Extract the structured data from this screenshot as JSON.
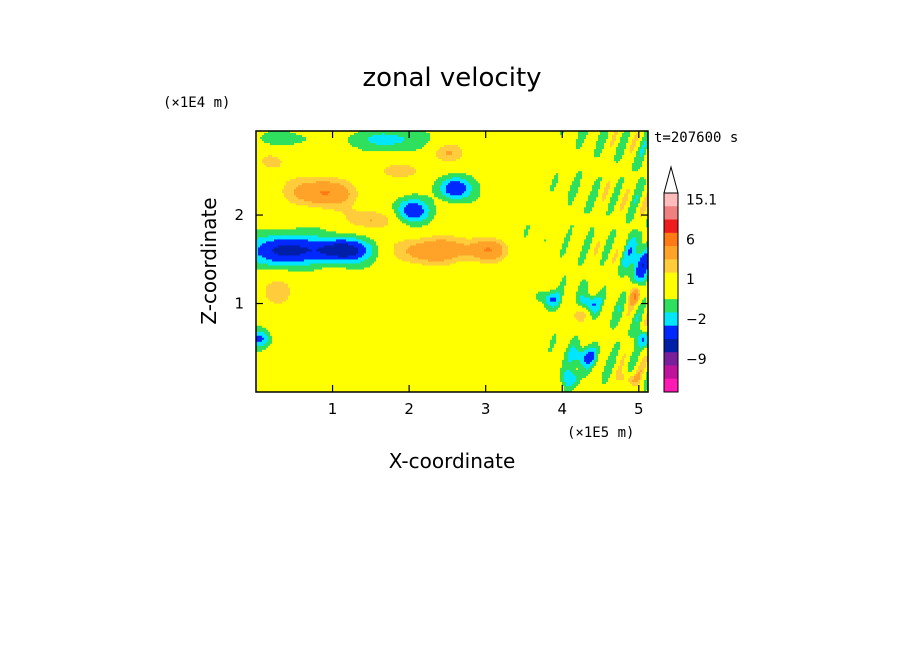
{
  "chart_data": {
    "type": "heatmap",
    "title": "zonal velocity",
    "xlabel": "X-coordinate",
    "ylabel": "Z-coordinate",
    "x_unit": "(×1E5 m)",
    "y_unit": "(×1E4 m)",
    "time_label": "t=207600 s",
    "xlim": [
      0,
      5.12
    ],
    "ylim": [
      0,
      2.95
    ],
    "x_ticks": [
      "1",
      "2",
      "3",
      "4",
      "5"
    ],
    "y_ticks": [
      "1",
      "2"
    ],
    "colorbar": {
      "labels": [
        "15.1",
        "6",
        "1",
        "-2",
        "-9"
      ],
      "levels": [
        {
          "v": 12,
          "color": "#ffbcbc"
        },
        {
          "v": 9,
          "color": "#f08080"
        },
        {
          "v": 6,
          "color": "#ee1c1c"
        },
        {
          "v": 4,
          "color": "#ff7a14"
        },
        {
          "v": 2.5,
          "color": "#ffa328"
        },
        {
          "v": 1.5,
          "color": "#ffcc3c"
        },
        {
          "v": 1,
          "color": "#ffff00"
        },
        {
          "v": 0,
          "color": "#ffff00"
        },
        {
          "v": -1,
          "color": "#2ee05e"
        },
        {
          "v": -2,
          "color": "#00e6ff"
        },
        {
          "v": -4,
          "color": "#0028ff"
        },
        {
          "v": -6,
          "color": "#001ea8"
        },
        {
          "v": -9,
          "color": "#7a1f9c"
        },
        {
          "v": -12,
          "color": "#c0139c"
        },
        {
          "v": -15,
          "color": "#ff1ab4"
        }
      ]
    },
    "features": [
      {
        "x": 0.4,
        "z": 1.6,
        "sx": 0.45,
        "sz": 0.17,
        "a": -6.5
      },
      {
        "x": 1.15,
        "z": 1.6,
        "sx": 0.35,
        "sz": 0.13,
        "a": -7
      },
      {
        "x": 2.05,
        "z": 2.05,
        "sx": 0.22,
        "sz": 0.13,
        "a": -5
      },
      {
        "x": 2.6,
        "z": 2.3,
        "sx": 0.2,
        "sz": 0.12,
        "a": -5.5
      },
      {
        "x": 0.85,
        "z": 2.25,
        "sx": 0.5,
        "sz": 0.18,
        "a": 4
      },
      {
        "x": 1.5,
        "z": 1.95,
        "sx": 0.35,
        "sz": 0.12,
        "a": 2.5
      },
      {
        "x": 2.35,
        "z": 1.6,
        "sx": 0.55,
        "sz": 0.17,
        "a": 4
      },
      {
        "x": 3.05,
        "z": 1.6,
        "sx": 0.25,
        "sz": 0.14,
        "a": 3
      },
      {
        "x": 2.5,
        "z": 2.7,
        "sx": 0.25,
        "sz": 0.12,
        "a": 2.5
      },
      {
        "x": 1.9,
        "z": 2.5,
        "sx": 0.35,
        "sz": 0.1,
        "a": 2
      },
      {
        "x": 0.15,
        "z": 2.6,
        "sx": 0.3,
        "sz": 0.2,
        "a": 1.8
      },
      {
        "x": 1.7,
        "z": 2.85,
        "sx": 0.5,
        "sz": 0.12,
        "a": -2.5
      },
      {
        "x": 0.3,
        "z": 2.85,
        "sx": 0.3,
        "sz": 0.1,
        "a": -1.8
      },
      {
        "x": 1.9,
        "z": 0.55,
        "sx": 1.2,
        "sz": 0.35,
        "a": 0.8
      },
      {
        "x": 0.05,
        "z": 0.6,
        "sx": 0.12,
        "sz": 0.1,
        "a": -4
      },
      {
        "x": 0.3,
        "z": 1.15,
        "sx": 0.3,
        "sz": 0.2,
        "a": 2
      },
      {
        "x": 4.3,
        "z": 0.4,
        "sx": 0.18,
        "sz": 0.12,
        "a": -4
      },
      {
        "x": 3.85,
        "z": 1.05,
        "sx": 0.12,
        "sz": 0.1,
        "a": -4
      },
      {
        "x": 4.35,
        "z": 1.0,
        "sx": 0.12,
        "sz": 0.1,
        "a": -4.5
      },
      {
        "x": 4.85,
        "z": 0.15,
        "sx": 0.12,
        "sz": 0.08,
        "a": 3
      },
      {
        "x": 5.0,
        "z": 1.45,
        "sx": 0.14,
        "sz": 0.25,
        "a": -4.5
      },
      {
        "x": 4.95,
        "z": 1.1,
        "sx": 0.1,
        "sz": 0.12,
        "a": 3.5
      },
      {
        "x": 4.2,
        "z": 0.9,
        "sx": 0.12,
        "sz": 0.12,
        "a": 2.5
      },
      {
        "x": 4.1,
        "z": 0.15,
        "sx": 0.1,
        "sz": 0.1,
        "a": -3.5
      },
      {
        "x": 5.05,
        "z": 0.6,
        "sx": 0.08,
        "sz": 0.1,
        "a": -4
      },
      {
        "x": 3.4,
        "z": 2.55,
        "sx": 0.2,
        "sz": 0.2,
        "a": 1.5
      }
    ]
  }
}
